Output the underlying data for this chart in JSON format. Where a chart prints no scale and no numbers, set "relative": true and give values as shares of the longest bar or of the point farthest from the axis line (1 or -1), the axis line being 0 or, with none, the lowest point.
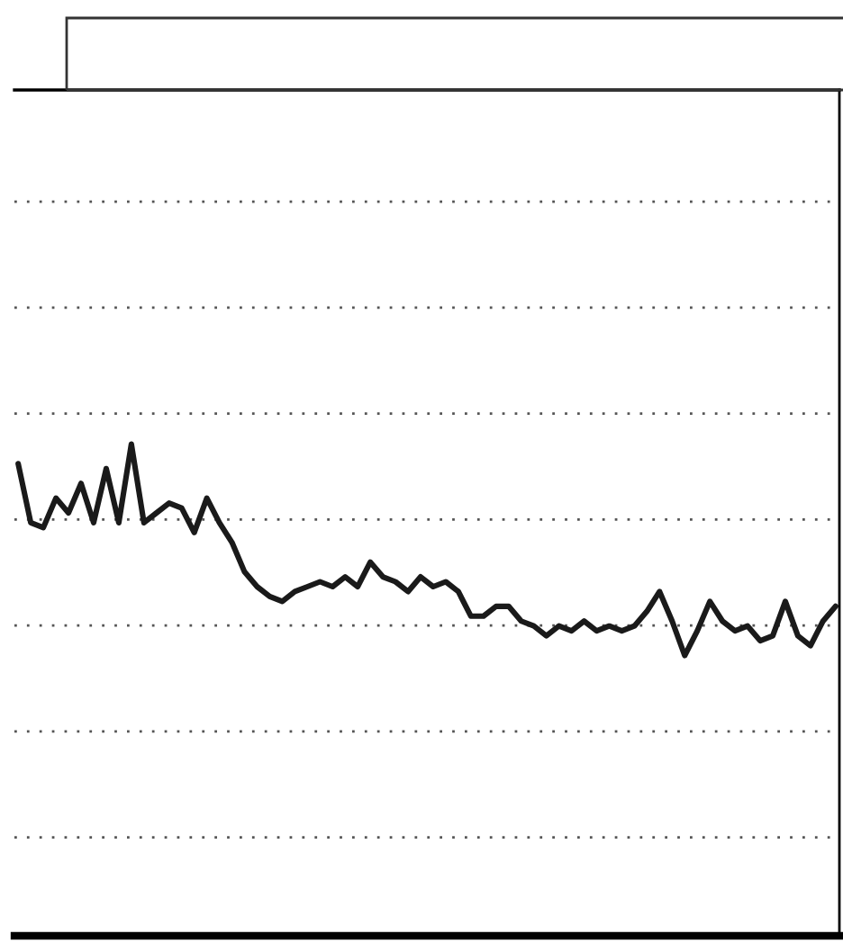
{
  "chart_data": {
    "type": "line",
    "relative": true,
    "grid": "y",
    "marker": "none",
    "line_style": "solid",
    "categories": [
      null,
      null,
      null,
      null,
      null,
      null,
      null,
      null,
      null,
      null,
      null,
      null,
      null,
      null,
      null,
      null,
      null,
      null,
      null,
      null,
      null,
      null,
      null,
      null,
      null,
      null,
      null,
      null,
      null,
      null,
      null,
      null,
      null,
      null,
      null,
      null,
      null,
      null,
      null,
      null,
      null,
      null,
      null,
      null,
      null,
      null,
      null,
      null,
      null,
      null,
      null,
      null,
      null,
      null,
      null,
      null,
      null,
      null,
      null,
      null,
      null,
      null,
      null,
      null,
      null,
      null
    ],
    "series": [
      {
        "color": "#1a1a1a",
        "values": [
          0.96,
          0.84,
          0.83,
          0.89,
          0.86,
          0.92,
          0.84,
          0.95,
          0.84,
          1,
          0.84,
          0.86,
          0.88,
          0.87,
          0.82,
          0.89,
          0.84,
          0.8,
          0.74,
          0.71,
          0.69,
          0.68,
          0.7,
          0.71,
          0.72,
          0.71,
          0.73,
          0.71,
          0.76,
          0.73,
          0.72,
          0.7,
          0.73,
          0.71,
          0.72,
          0.7,
          0.65,
          0.65,
          0.67,
          0.67,
          0.64,
          0.63,
          0.61,
          0.63,
          0.62,
          0.64,
          0.62,
          0.63,
          0.62,
          0.63,
          0.66,
          0.7,
          0.64,
          0.57,
          0.62,
          0.68,
          0.64,
          0.62,
          0.63,
          0.6,
          0.61,
          0.68,
          0.61,
          0.59,
          0.64,
          0.67
        ]
      }
    ]
  }
}
